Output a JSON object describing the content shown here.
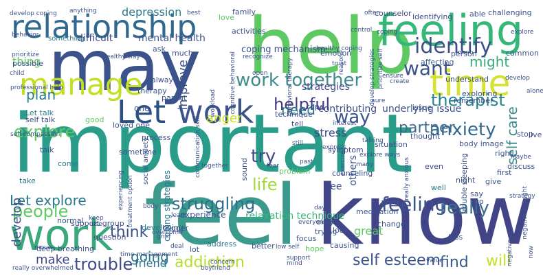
{
  "words": [
    {
      "text": "important",
      "color": "#2a9d8a",
      "weight": "large"
    },
    {
      "text": "may",
      "color": "#3b528b",
      "weight": "large"
    },
    {
      "text": "help",
      "color": "#5ec962",
      "weight": "large"
    },
    {
      "text": "feel",
      "color": "#3b9a8c",
      "weight": "large"
    },
    {
      "text": "know",
      "color": "#414487",
      "weight": "large"
    },
    {
      "text": "feeling",
      "color": "#35b779",
      "weight": "large"
    },
    {
      "text": "relationship",
      "color": "#31688e",
      "weight": "large"
    },
    {
      "text": "work",
      "color": "#3aa87b",
      "weight": "large"
    },
    {
      "text": "Let",
      "color": "#2c4f87",
      "weight": "large"
    },
    {
      "text": "work",
      "color": "#3b528b",
      "weight": "large"
    },
    {
      "text": "manage",
      "color": "#c2df23",
      "weight": "medium"
    },
    {
      "text": "time",
      "color": "#d6e231",
      "weight": "medium"
    },
    {
      "text": "work together",
      "color": "#3f8b8d",
      "weight": "medium"
    },
    {
      "text": "helpful",
      "color": "#443a83",
      "weight": "medium"
    },
    {
      "text": "identify",
      "color": "#3c4e88",
      "weight": "medium"
    },
    {
      "text": "therapist",
      "color": "#26828e",
      "weight": "medium"
    },
    {
      "text": "want",
      "color": "#3b528b",
      "weight": "medium"
    },
    {
      "text": "might",
      "color": "#3aa87b",
      "weight": "medium"
    },
    {
      "text": "explore",
      "color": "#5ec962",
      "weight": "medium"
    },
    {
      "text": "anxiety",
      "color": "#31688e",
      "weight": "medium"
    },
    {
      "text": "partner",
      "color": "#3f6c8c",
      "weight": "medium"
    },
    {
      "text": "self care",
      "color": "#3a8c8c",
      "weight": "medium"
    },
    {
      "text": "struggling",
      "color": "#2e6f8e",
      "weight": "medium"
    },
    {
      "text": "feeling",
      "color": "#3b528b",
      "weight": "medium"
    },
    {
      "text": "really",
      "color": "#3b6f8e",
      "weight": "medium"
    },
    {
      "text": "trouble",
      "color": "#3e4a89",
      "weight": "medium"
    },
    {
      "text": "addiction",
      "color": "#b5de2b",
      "weight": "medium"
    },
    {
      "text": "self esteem",
      "color": "#3b528b",
      "weight": "medium"
    },
    {
      "text": "find",
      "color": "#37598c",
      "weight": "medium"
    },
    {
      "text": "will",
      "color": "#c2df23",
      "weight": "medium"
    },
    {
      "text": "people",
      "color": "#5ec962",
      "weight": "medium"
    },
    {
      "text": "think",
      "color": "#3b528b",
      "weight": "medium"
    },
    {
      "text": "going",
      "color": "#2a788e",
      "weight": "medium"
    },
    {
      "text": "friend",
      "color": "#2d708e",
      "weight": "medium"
    },
    {
      "text": "make",
      "color": "#3e4989",
      "weight": "medium"
    },
    {
      "text": "Let explore",
      "color": "#29788e",
      "weight": "medium"
    },
    {
      "text": "life",
      "color": "#a0da39",
      "weight": "medium"
    },
    {
      "text": "try",
      "color": "#3e4a89",
      "weight": "medium"
    },
    {
      "text": "way",
      "color": "#3b528b",
      "weight": "medium"
    },
    {
      "text": "need",
      "color": "#2a788e",
      "weight": "medium"
    },
    {
      "text": "stress",
      "color": "#3e4a89",
      "weight": "small"
    },
    {
      "text": "anger",
      "color": "#c8e020",
      "weight": "medium"
    },
    {
      "text": "improve",
      "color": "#3b528b",
      "weight": "medium"
    },
    {
      "text": "plan",
      "color": "#2a788e",
      "weight": "medium"
    },
    {
      "text": "thing",
      "color": "#5ec962",
      "weight": "small"
    },
    {
      "text": "develop",
      "color": "#3b528b",
      "weight": "medium"
    },
    {
      "text": "depression",
      "color": "#2a788e",
      "weight": "small"
    },
    {
      "text": "difficult",
      "color": "#3e4a89",
      "weight": "small"
    },
    {
      "text": "mental health",
      "color": "#3b528b",
      "weight": "small"
    },
    {
      "text": "strategies",
      "color": "#3e4a89",
      "weight": "small"
    },
    {
      "text": "contributing",
      "color": "#3e4a89",
      "weight": "small"
    },
    {
      "text": "underlying issue",
      "color": "#3b528b",
      "weight": "small"
    },
    {
      "text": "coping mechanism",
      "color": "#3b528b",
      "weight": "small"
    },
    {
      "text": "something",
      "color": "#2a788e",
      "weight": "tiny"
    },
    {
      "text": "coping strategies",
      "color": "#2a788e",
      "weight": "small"
    },
    {
      "text": "relaxation technique",
      "color": "#35b779",
      "weight": "small"
    },
    {
      "text": "experience",
      "color": "#3b528b",
      "weight": "tiny"
    },
    {
      "text": "support group",
      "color": "#3e4a89",
      "weight": "tiny"
    },
    {
      "text": "deep breathing",
      "color": "#3b528b",
      "weight": "tiny"
    },
    {
      "text": "question",
      "color": "#3e4a89",
      "weight": "tiny"
    },
    {
      "text": "developing",
      "color": "#2a788e",
      "weight": "tiny"
    },
    {
      "text": "trigger",
      "color": "#3e4a89",
      "weight": "tiny"
    },
    {
      "text": "see",
      "color": "#3e4a89",
      "weight": "small"
    },
    {
      "text": "others",
      "color": "#3b528b",
      "weight": "small"
    },
    {
      "text": "medication",
      "color": "#3b528b",
      "weight": "tiny"
    },
    {
      "text": "change",
      "color": "#3b528b",
      "weight": "tiny"
    },
    {
      "text": "great",
      "color": "#5ec962",
      "weight": "small"
    },
    {
      "text": "focus",
      "color": "#3b528b",
      "weight": "tiny"
    },
    {
      "text": "better",
      "color": "#3b528b",
      "weight": "tiny"
    },
    {
      "text": "causing",
      "color": "#3b528b",
      "weight": "tiny"
    },
    {
      "text": "address",
      "color": "#2a788e",
      "weight": "tiny"
    },
    {
      "text": "thought",
      "color": "#3b528b",
      "weight": "tiny"
    },
    {
      "text": "symptom",
      "color": "#3e4a89",
      "weight": "tiny"
    },
    {
      "text": "situation",
      "color": "#3b528b",
      "weight": "tiny"
    },
    {
      "text": "body image",
      "color": "#3b528b",
      "weight": "tiny"
    },
    {
      "text": "remember",
      "color": "#3b528b",
      "weight": "tiny"
    },
    {
      "text": "issue",
      "color": "#3b528b",
      "weight": "tiny"
    },
    {
      "text": "even",
      "color": "#3e4a89",
      "weight": "tiny"
    },
    {
      "text": "well",
      "color": "#2a788e",
      "weight": "tiny"
    },
    {
      "text": "say",
      "color": "#3b528b",
      "weight": "tiny"
    },
    {
      "text": "give",
      "color": "#3b528b",
      "weight": "tiny"
    },
    {
      "text": "go",
      "color": "#3e4a89",
      "weight": "tiny"
    },
    {
      "text": "one",
      "color": "#3b528b",
      "weight": "tiny"
    },
    {
      "text": "come",
      "color": "#2a788e",
      "weight": "tiny"
    },
    {
      "text": "talk",
      "color": "#3b528b",
      "weight": "tiny"
    },
    {
      "text": "take",
      "color": "#2a788e",
      "weight": "tiny"
    },
    {
      "text": "normal",
      "color": "#3b528b",
      "weight": "tiny"
    },
    {
      "text": "loved one",
      "color": "#3b528b",
      "weight": "tiny"
    },
    {
      "text": "self talk",
      "color": "#3e4a89",
      "weight": "tiny"
    },
    {
      "text": "Let talk",
      "color": "#2a788e",
      "weight": "tiny"
    },
    {
      "text": "good",
      "color": "#5ec962",
      "weight": "tiny"
    },
    {
      "text": "process",
      "color": "#3b528b",
      "weight": "tiny"
    },
    {
      "text": "parent",
      "color": "#3b528b",
      "weight": "tiny"
    },
    {
      "text": "therapy",
      "color": "#3b528b",
      "weight": "tiny"
    },
    {
      "text": "always",
      "color": "#3b528b",
      "weight": "tiny"
    },
    {
      "text": "much",
      "color": "#3b528b",
      "weight": "tiny"
    },
    {
      "text": "possible",
      "color": "#3b528b",
      "weight": "tiny"
    },
    {
      "text": "activities",
      "color": "#3e4a89",
      "weight": "tiny"
    },
    {
      "text": "family",
      "color": "#3b528b",
      "weight": "tiny"
    },
    {
      "text": "love",
      "color": "#5ec962",
      "weight": "tiny"
    },
    {
      "text": "identifying",
      "color": "#3b528b",
      "weight": "tiny"
    },
    {
      "text": "able",
      "color": "#3b528b",
      "weight": "tiny"
    },
    {
      "text": "challenging",
      "color": "#3b528b",
      "weight": "tiny"
    },
    {
      "text": "counselor",
      "color": "#3e4a89",
      "weight": "tiny"
    },
    {
      "text": "emotion",
      "color": "#3b528b",
      "weight": "tiny"
    },
    {
      "text": "affecting",
      "color": "#3b528b",
      "weight": "tiny"
    },
    {
      "text": "person",
      "color": "#3b528b",
      "weight": "tiny"
    },
    {
      "text": "common",
      "color": "#3b528b",
      "weight": "tiny"
    },
    {
      "text": "understand",
      "color": "#3b528b",
      "weight": "tiny"
    },
    {
      "text": "exploring",
      "color": "#3b528b",
      "weight": "tiny"
    },
    {
      "text": "alone",
      "color": "#3b528b",
      "weight": "tiny"
    },
    {
      "text": "create",
      "color": "#3b528b",
      "weight": "tiny"
    },
    {
      "text": "cope",
      "color": "#3b528b",
      "weight": "tiny"
    },
    {
      "text": "technique",
      "color": "#3b528b",
      "weight": "tiny"
    },
    {
      "text": "tell",
      "color": "#3b528b",
      "weight": "tiny"
    },
    {
      "text": "open",
      "color": "#3b528b",
      "weight": "tiny"
    },
    {
      "text": "trust",
      "color": "#3b528b",
      "weight": "tiny"
    },
    {
      "text": "interest",
      "color": "#3b528b",
      "weight": "tiny"
    },
    {
      "text": "sound",
      "color": "#3b528b",
      "weight": "tiny"
    },
    {
      "text": "fear",
      "color": "#3b528b",
      "weight": "tiny"
    },
    {
      "text": "problem",
      "color": "#5ec962",
      "weight": "tiny"
    },
    {
      "text": "counseling",
      "color": "#3b528b",
      "weight": "tiny"
    },
    {
      "text": "night",
      "color": "#3b528b",
      "weight": "tiny"
    },
    {
      "text": "first",
      "color": "#3b528b",
      "weight": "tiny"
    },
    {
      "text": "discuss",
      "color": "#3b528b",
      "weight": "tiny"
    },
    {
      "text": "stop",
      "color": "#3b528b",
      "weight": "tiny"
    },
    {
      "text": "live",
      "color": "#3b528b",
      "weight": "tiny"
    },
    {
      "text": "right",
      "color": "#3b528b",
      "weight": "tiny"
    },
    {
      "text": "okay",
      "color": "#3b528b",
      "weight": "tiny"
    },
    {
      "text": "trying",
      "color": "#3b528b",
      "weight": "tiny"
    },
    {
      "text": "look",
      "color": "#3b528b",
      "weight": "tiny"
    },
    {
      "text": "loss",
      "color": "#3b528b",
      "weight": "tiny"
    },
    {
      "text": "hope",
      "color": "#5ec962",
      "weight": "tiny"
    },
    {
      "text": "lot",
      "color": "#3b528b",
      "weight": "tiny"
    },
    {
      "text": "ask",
      "color": "#3b528b",
      "weight": "tiny"
    },
    {
      "text": "develop coping",
      "color": "#3b528b",
      "weight": "tiny"
    },
    {
      "text": "anything",
      "color": "#3b528b",
      "weight": "tiny"
    },
    {
      "text": "behavior",
      "color": "#3b528b",
      "weight": "tiny"
    },
    {
      "text": "prioritize",
      "color": "#3b528b",
      "weight": "tiny"
    },
    {
      "text": "child",
      "color": "#3b528b",
      "weight": "tiny"
    },
    {
      "text": "professional help",
      "color": "#3b528b",
      "weight": "tiny"
    },
    {
      "text": "self compassion",
      "color": "#3b528b",
      "weight": "tiny"
    },
    {
      "text": "social anxiety",
      "color": "#3b528b",
      "weight": "tiny"
    },
    {
      "text": "experiencing",
      "color": "#3b528b",
      "weight": "tiny"
    },
    {
      "text": "treatment option",
      "color": "#3b528b",
      "weight": "tiny"
    },
    {
      "text": "sometime",
      "color": "#3b528b",
      "weight": "tiny"
    },
    {
      "text": "keep",
      "color": "#3b528b",
      "weight": "tiny"
    },
    {
      "text": "use",
      "color": "#3b528b",
      "weight": "tiny"
    },
    {
      "text": "body",
      "color": "#3b528b",
      "weight": "tiny"
    },
    {
      "text": "learn",
      "color": "#3b528b",
      "weight": "tiny"
    },
    {
      "text": "move",
      "color": "#3b528b",
      "weight": "tiny"
    },
    {
      "text": "time management",
      "color": "#3b528b",
      "weight": "tiny"
    },
    {
      "text": "overcome",
      "color": "#3b528b",
      "weight": "tiny"
    },
    {
      "text": "grief",
      "color": "#3b528b",
      "weight": "tiny"
    },
    {
      "text": "deal",
      "color": "#3b528b",
      "weight": "tiny"
    },
    {
      "text": "concern",
      "color": "#3b528b",
      "weight": "tiny"
    },
    {
      "text": "boyfriend",
      "color": "#3b528b",
      "weight": "tiny"
    },
    {
      "text": "really overwhelmed",
      "color": "#3b528b",
      "weight": "tiny"
    },
    {
      "text": "healthy way",
      "color": "#3b528b",
      "weight": "tiny"
    },
    {
      "text": "communication skill",
      "color": "#3b528b",
      "weight": "tiny"
    },
    {
      "text": "workload",
      "color": "#3b528b",
      "weight": "tiny"
    },
    {
      "text": "recognize",
      "color": "#3b528b",
      "weight": "tiny"
    },
    {
      "text": "healthy coping",
      "color": "#3b528b",
      "weight": "tiny"
    },
    {
      "text": "develop strategies",
      "color": "#3b528b",
      "weight": "tiny"
    },
    {
      "text": "prioritize self",
      "color": "#3b528b",
      "weight": "tiny"
    },
    {
      "text": "cognitive behavioral",
      "color": "#3b528b",
      "weight": "tiny"
    },
    {
      "text": "behavioral therapy",
      "color": "#3b528b",
      "weight": "tiny"
    },
    {
      "text": "reasons",
      "color": "#3b528b",
      "weight": "tiny"
    },
    {
      "text": "control",
      "color": "#3b528b",
      "weight": "tiny"
    },
    {
      "text": "often",
      "color": "#3b528b",
      "weight": "tiny"
    },
    {
      "text": "best",
      "color": "#3b528b",
      "weight": "tiny"
    },
    {
      "text": "explore ways",
      "color": "#3b528b",
      "weight": "tiny"
    },
    {
      "text": "exercise",
      "color": "#3b528b",
      "weight": "tiny"
    },
    {
      "text": "past",
      "color": "#3b528b",
      "weight": "tiny"
    },
    {
      "text": "express",
      "color": "#3b528b",
      "weight": "tiny"
    },
    {
      "text": "together",
      "color": "#3b528b",
      "weight": "tiny"
    },
    {
      "text": "still",
      "color": "#3b528b",
      "weight": "tiny"
    },
    {
      "text": "trouble sleeping",
      "color": "#3b528b",
      "weight": "tiny"
    },
    {
      "text": "really anxious",
      "color": "#3b528b",
      "weight": "tiny"
    },
    {
      "text": "negative thought",
      "color": "#3b528b",
      "weight": "tiny"
    },
    {
      "text": "negative self",
      "color": "#3b528b",
      "weight": "tiny"
    },
    {
      "text": "low self",
      "color": "#3b528b",
      "weight": "tiny"
    },
    {
      "text": "support",
      "color": "#3b528b",
      "weight": "tiny"
    },
    {
      "text": "mind",
      "color": "#3b528b",
      "weight": "tiny"
    },
    {
      "text": "everyone",
      "color": "#3b528b",
      "weight": "tiny"
    },
    {
      "text": "day",
      "color": "#3b528b",
      "weight": "tiny"
    },
    {
      "text": "value",
      "color": "#3b528b",
      "weight": "tiny"
    },
    {
      "text": "now",
      "color": "#3b528b",
      "weight": "tiny"
    },
    {
      "text": "mean",
      "color": "#3b528b",
      "weight": "tiny"
    },
    {
      "text": "Maybe",
      "color": "#3b528b",
      "weight": "tiny"
    },
    {
      "text": "many",
      "color": "#3b528b",
      "weight": "tiny"
    },
    {
      "text": "talking",
      "color": "#3b528b",
      "weight": "tiny"
    },
    {
      "text": "sure",
      "color": "#3b528b",
      "weight": "tiny"
    },
    {
      "text": "coping",
      "color": "#3b528b",
      "weight": "tiny"
    },
    {
      "text": "ensure",
      "color": "#3b528b",
      "weight": "tiny"
    },
    {
      "text": "strategy",
      "color": "#3b528b",
      "weight": "tiny"
    },
    {
      "text": "develop",
      "color": "#3b528b",
      "weight": "tiny"
    },
    {
      "text": "explore",
      "color": "#3b528b",
      "weight": "tiny"
    }
  ]
}
